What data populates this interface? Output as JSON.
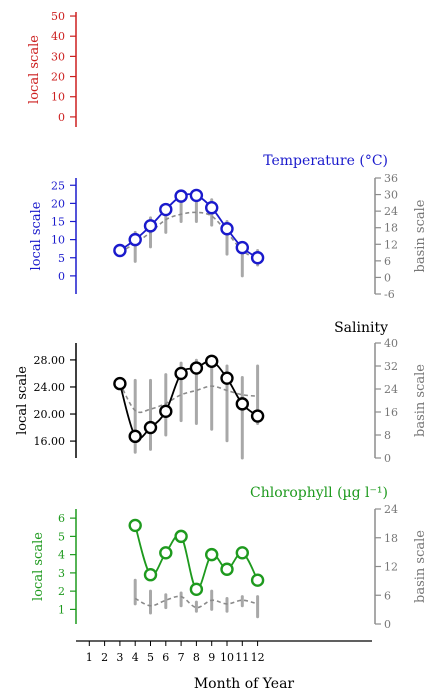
{
  "figure": {
    "xlabel": "Month of Year",
    "x_ticks": [
      "1",
      "2",
      "3",
      "4",
      "5",
      "6",
      "7",
      "8",
      "9",
      "10",
      "11",
      "12"
    ]
  },
  "colors": {
    "top": "#cc1f1f",
    "temperature": "#1a1acc",
    "salinity": "#000000",
    "chlorophyll": "#1e9a1e",
    "basin": "#8c8c8c"
  },
  "chart_data": [
    {
      "type": "line",
      "title": "",
      "ylabel": "local scale",
      "ylim": [
        -5,
        52
      ],
      "y_ticks": [
        "0",
        "10",
        "20",
        "30",
        "40",
        "50"
      ],
      "series": []
    },
    {
      "type": "line",
      "title": "Temperature (°C)",
      "ylabel": "local scale",
      "y2label": "basin scale",
      "ylim": [
        -5,
        27
      ],
      "y_ticks": [
        "0",
        "5",
        "10",
        "15",
        "20",
        "25"
      ],
      "y2lim": [
        -6,
        36
      ],
      "y2_ticks": [
        "-6",
        "0",
        "6",
        "12",
        "18",
        "24",
        "30",
        "36"
      ],
      "x": [
        3,
        4,
        5,
        6,
        7,
        8,
        9,
        10,
        11,
        12
      ],
      "series": [
        {
          "values": [
            7.0,
            10.0,
            13.8,
            18.3,
            22.0,
            22.2,
            18.8,
            13.0,
            7.8,
            5.0
          ]
        },
        {
          "style": "dashed",
          "values": [
            6.5,
            9.0,
            12.0,
            15.5,
            17.0,
            17.5,
            16.5,
            12.0,
            7.0,
            4.5
          ]
        }
      ],
      "basin_spread": [
        {
          "x": 4,
          "low": 4,
          "high": 12
        },
        {
          "x": 5,
          "low": 8,
          "high": 16
        },
        {
          "x": 6,
          "low": 12,
          "high": 19
        },
        {
          "x": 7,
          "low": 15,
          "high": 23
        },
        {
          "x": 8,
          "low": 15,
          "high": 23
        },
        {
          "x": 9,
          "low": 14,
          "high": 21
        },
        {
          "x": 10,
          "low": 6,
          "high": 15
        },
        {
          "x": 11,
          "low": 0,
          "high": 8
        },
        {
          "x": 12,
          "low": 3,
          "high": 7
        }
      ]
    },
    {
      "type": "line",
      "title": "Salinity",
      "ylabel": "local scale",
      "y2label": "basin scale",
      "ylim": [
        13.5,
        30.5
      ],
      "y_ticks": [
        "16.00",
        "20.00",
        "24.00",
        "28.00"
      ],
      "y2lim": [
        0,
        40
      ],
      "y2_ticks": [
        "0",
        "8",
        "16",
        "24",
        "32",
        "40"
      ],
      "x": [
        3,
        4,
        5,
        6,
        7,
        8,
        9,
        10,
        11,
        12
      ],
      "series": [
        {
          "values": [
            24.5,
            16.7,
            18.0,
            20.4,
            26.0,
            26.8,
            27.8,
            25.3,
            21.5,
            19.7
          ]
        },
        {
          "style": "dashed",
          "axis": "basin",
          "values": [
            26.0,
            16.5,
            17.0,
            19.0,
            22.0,
            23.5,
            25.0,
            23.5,
            22.0,
            21.5
          ]
        }
      ],
      "basin_spread": [
        {
          "x": 4,
          "low": 2,
          "high": 27
        },
        {
          "x": 5,
          "low": 3,
          "high": 27
        },
        {
          "x": 6,
          "low": 8,
          "high": 29
        },
        {
          "x": 7,
          "low": 13,
          "high": 33
        },
        {
          "x": 8,
          "low": 12,
          "high": 34
        },
        {
          "x": 9,
          "low": 10,
          "high": 34
        },
        {
          "x": 10,
          "low": 6,
          "high": 32
        },
        {
          "x": 11,
          "low": 0,
          "high": 28
        },
        {
          "x": 12,
          "low": 12,
          "high": 32
        }
      ]
    },
    {
      "type": "line",
      "title": "Chlorophyll (µg l⁻¹)",
      "ylabel": "local scale",
      "y2label": "basin scale",
      "ylim": [
        0.2,
        6.5
      ],
      "y_ticks": [
        "1",
        "2",
        "3",
        "4",
        "5",
        "6"
      ],
      "y2lim": [
        0,
        24
      ],
      "y2_ticks": [
        "0",
        "6",
        "12",
        "18",
        "24"
      ],
      "x": [
        4,
        5,
        6,
        7,
        8,
        9,
        10,
        11,
        12
      ],
      "series": [
        {
          "values": [
            5.6,
            2.9,
            4.1,
            5.0,
            2.1,
            4.0,
            3.2,
            4.1,
            2.6
          ]
        },
        {
          "style": "dashed",
          "values": [
            1.6,
            1.2,
            1.5,
            1.7,
            1.1,
            1.5,
            1.3,
            1.5,
            1.3
          ]
        }
      ],
      "basin_spread": [
        {
          "x": 4,
          "low": 1.3,
          "high": 2.6
        },
        {
          "x": 5,
          "low": 0.8,
          "high": 2.0
        },
        {
          "x": 6,
          "low": 1.1,
          "high": 1.8
        },
        {
          "x": 7,
          "low": 1.2,
          "high": 1.9
        },
        {
          "x": 8,
          "low": 0.9,
          "high": 1.4
        },
        {
          "x": 9,
          "low": 1.0,
          "high": 2.0
        },
        {
          "x": 10,
          "low": 0.9,
          "high": 1.6
        },
        {
          "x": 11,
          "low": 1.2,
          "high": 1.7
        },
        {
          "x": 12,
          "low": 0.6,
          "high": 1.7
        }
      ]
    }
  ]
}
